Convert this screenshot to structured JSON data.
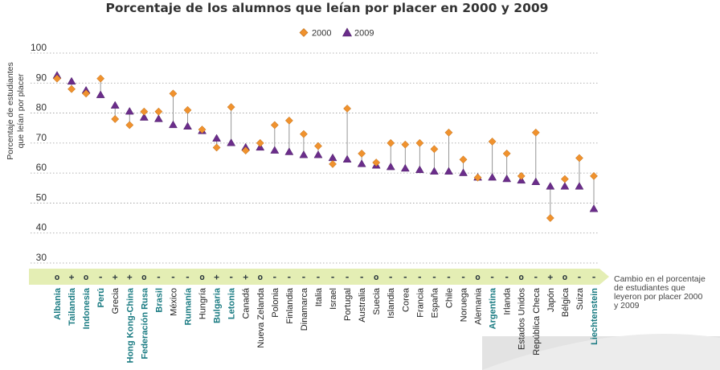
{
  "chart_data": {
    "type": "scatter",
    "title": "Porcentaje de los alumnos que leían por placer en 2000 y 2009",
    "ylabel": "Porcentaje de estudiantes que leían por placer",
    "ylim": [
      30,
      100
    ],
    "yticks": [
      30,
      40,
      50,
      60,
      70,
      80,
      90,
      100
    ],
    "grid": true,
    "legend_position": "top-center",
    "change_axis_label": "Cambio en el porcentaje de estudiantes que leyeron por placer 2000 y 2009",
    "colors": {
      "2000": "#f0922e",
      "2009": "#6b2d8b",
      "connector": "#8a8a8a",
      "band": "#e4eeb4",
      "label_highlight": "#1a7b82",
      "label_default": "#222222"
    },
    "categories": [
      "Albania",
      "Tailandia",
      "Indonesia",
      "Perú",
      "Grecia",
      "Hong Kong-China",
      "Federación Rusa",
      "Brasil",
      "México",
      "Rumanía",
      "Hungría",
      "Bulgaria",
      "Letonia",
      "Canadá",
      "Nueva Zelanda",
      "Polonia",
      "Finlandia",
      "Dinamarca",
      "Italia",
      "Israel",
      "Portugal",
      "Australia",
      "Suecia",
      "Islandia",
      "Corea",
      "Francia",
      "España",
      "Chile",
      "Noruega",
      "Alemania",
      "Argentina",
      "Irlanda",
      "Estados Unidos",
      "República Checa",
      "Japón",
      "Bélgica",
      "Suiza",
      "Liechtenstein"
    ],
    "highlighted": [
      "Albania",
      "Tailandia",
      "Indonesia",
      "Perú",
      "Hong Kong-China",
      "Federación Rusa",
      "Brasil",
      "Rumanía",
      "Bulgaria",
      "Letonia",
      "Argentina",
      "Liechtenstein"
    ],
    "change": [
      "o",
      "+",
      "o",
      "-",
      "+",
      "+",
      "o",
      "-",
      "-",
      "-",
      "o",
      "+",
      "-",
      "+",
      "o",
      "-",
      "-",
      "-",
      "-",
      "-",
      "-",
      "-",
      "o",
      "-",
      "-",
      "-",
      "-",
      "-",
      "-",
      "o",
      "-",
      "-",
      "o",
      "-",
      "+",
      "o",
      "-",
      "-"
    ],
    "series": [
      {
        "name": "2000",
        "marker": "diamond",
        "values": [
          91.5,
          88.0,
          86.5,
          91.5,
          78.0,
          76.0,
          80.5,
          80.5,
          86.5,
          81.0,
          74.5,
          68.5,
          82.0,
          67.5,
          70.0,
          76.0,
          77.5,
          73.0,
          69.0,
          63.0,
          81.5,
          66.5,
          63.5,
          70.0,
          69.5,
          70.0,
          68.0,
          73.5,
          64.5,
          58.5,
          70.5,
          66.5,
          59.0,
          73.5,
          45.0,
          58.0,
          65.0,
          59.0
        ]
      },
      {
        "name": "2009",
        "marker": "triangle",
        "values": [
          92.5,
          90.5,
          87.5,
          86.0,
          82.5,
          80.5,
          78.5,
          78.0,
          76.0,
          75.5,
          74.0,
          71.5,
          70.0,
          68.5,
          68.5,
          67.5,
          67.0,
          66.0,
          66.0,
          65.0,
          64.5,
          63.0,
          62.5,
          62.0,
          61.5,
          61.0,
          60.5,
          60.5,
          60.0,
          58.5,
          58.5,
          58.0,
          57.5,
          57.0,
          55.5,
          55.5,
          55.5,
          48.0
        ]
      }
    ]
  }
}
